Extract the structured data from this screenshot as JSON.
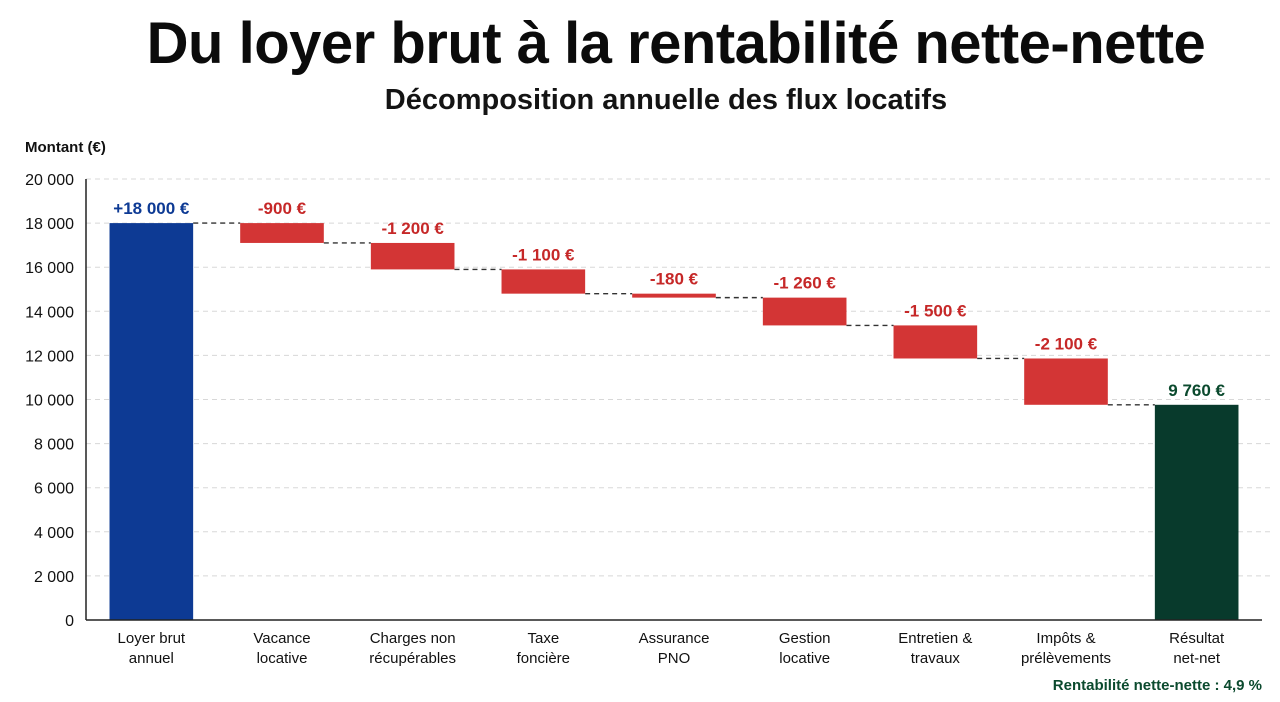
{
  "title": "Du loyer brut à la rentabilité nette-nette",
  "subtitle": "Décomposition annuelle des flux locatifs",
  "chart_data": {
    "type": "bar",
    "variant": "waterfall",
    "ylabel": "Montant (€)",
    "ylim": [
      0,
      20000
    ],
    "yticks": [
      {
        "value": 0,
        "label": "0"
      },
      {
        "value": 2000,
        "label": "2 000"
      },
      {
        "value": 4000,
        "label": "4 000"
      },
      {
        "value": 6000,
        "label": "6 000"
      },
      {
        "value": 8000,
        "label": "8 000"
      },
      {
        "value": 10000,
        "label": "10 000"
      },
      {
        "value": 12000,
        "label": "12 000"
      },
      {
        "value": 14000,
        "label": "14 000"
      },
      {
        "value": 16000,
        "label": "16 000"
      },
      {
        "value": 18000,
        "label": "18 000"
      },
      {
        "value": 20000,
        "label": "20 000"
      }
    ],
    "grid": true,
    "colors": {
      "start": "#0d3a94",
      "decrease": "#d33535",
      "total": "#083a2c",
      "decrease_label": "#c62828",
      "start_label": "#0d3a94",
      "total_label": "#0b4a2e"
    },
    "items": [
      {
        "category": [
          "Loyer brut",
          "annuel"
        ],
        "value": 18000,
        "kind": "start",
        "label": "+18 000 €"
      },
      {
        "category": [
          "Vacance",
          "locative"
        ],
        "value": -900,
        "kind": "decrease",
        "label": "-900 €"
      },
      {
        "category": [
          "Charges non",
          "récupérables"
        ],
        "value": -1200,
        "kind": "decrease",
        "label": "-1 200 €"
      },
      {
        "category": [
          "Taxe",
          "foncière"
        ],
        "value": -1100,
        "kind": "decrease",
        "label": "-1 100 €"
      },
      {
        "category": [
          "Assurance",
          "PNO"
        ],
        "value": -180,
        "kind": "decrease",
        "label": "-180 €"
      },
      {
        "category": [
          "Gestion",
          "locative"
        ],
        "value": -1260,
        "kind": "decrease",
        "label": "-1 260 €"
      },
      {
        "category": [
          "Entretien &",
          "travaux"
        ],
        "value": -1500,
        "kind": "decrease",
        "label": "-1 500 €"
      },
      {
        "category": [
          "Impôts &",
          "prélèvements"
        ],
        "value": -2100,
        "kind": "decrease",
        "label": "-2 100 €"
      },
      {
        "category": [
          "Résultat",
          "net-net"
        ],
        "value": 9760,
        "kind": "total",
        "label": "9 760 €"
      }
    ],
    "footnote": "Rentabilité nette-nette : 4,9 %"
  }
}
